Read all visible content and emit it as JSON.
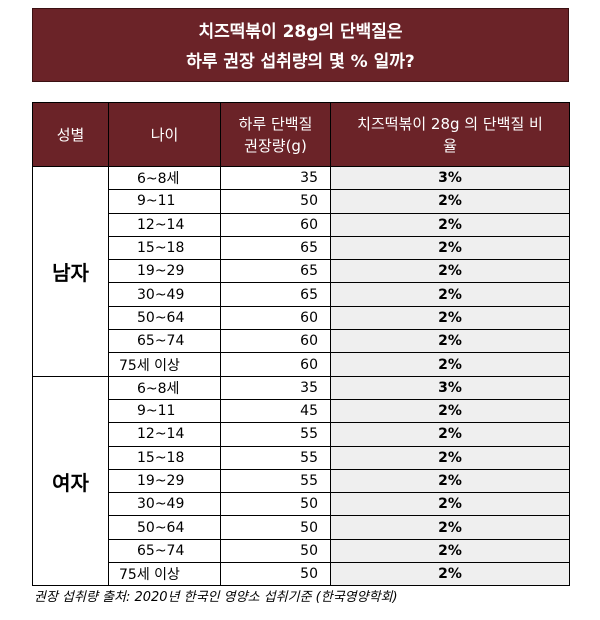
{
  "title": {
    "line1": "치즈떡볶이 28g의 단백질은",
    "line2": "하루 권장 섭취량의 몇 % 일까?"
  },
  "table": {
    "headers": {
      "gender": "성별",
      "age": "나이",
      "protein_line1": "하루 단백질",
      "protein_line2": "권장량(g)",
      "ratio_line1": "치즈떡볶이 28g 의 단백질 비",
      "ratio_line2": "율"
    },
    "groups": [
      {
        "gender": "남자",
        "rows": [
          {
            "age": "6~8세",
            "protein": "35",
            "ratio": "3%"
          },
          {
            "age": "9~11",
            "protein": "50",
            "ratio": "2%"
          },
          {
            "age": "12~14",
            "protein": "60",
            "ratio": "2%"
          },
          {
            "age": "15~18",
            "protein": "65",
            "ratio": "2%"
          },
          {
            "age": "19~29",
            "protein": "65",
            "ratio": "2%"
          },
          {
            "age": "30~49",
            "protein": "65",
            "ratio": "2%"
          },
          {
            "age": "50~64",
            "protein": "60",
            "ratio": "2%"
          },
          {
            "age": "65~74",
            "protein": "60",
            "ratio": "2%"
          },
          {
            "age": "75세 이상",
            "protein": "60",
            "ratio": "2%"
          }
        ]
      },
      {
        "gender": "여자",
        "rows": [
          {
            "age": "6~8세",
            "protein": "35",
            "ratio": "3%"
          },
          {
            "age": "9~11",
            "protein": "45",
            "ratio": "2%"
          },
          {
            "age": "12~14",
            "protein": "55",
            "ratio": "2%"
          },
          {
            "age": "15~18",
            "protein": "55",
            "ratio": "2%"
          },
          {
            "age": "19~29",
            "protein": "55",
            "ratio": "2%"
          },
          {
            "age": "30~49",
            "protein": "50",
            "ratio": "2%"
          },
          {
            "age": "50~64",
            "protein": "50",
            "ratio": "2%"
          },
          {
            "age": "65~74",
            "protein": "50",
            "ratio": "2%"
          },
          {
            "age": "75세 이상",
            "protein": "50",
            "ratio": "2%"
          }
        ]
      }
    ]
  },
  "source": "권장 섭취량 출처: 2020년 한국인 영양소 섭취기준 (한국영양학회)",
  "colors": {
    "header_bg": "#6b2328",
    "ratio_bg": "#efefef"
  }
}
